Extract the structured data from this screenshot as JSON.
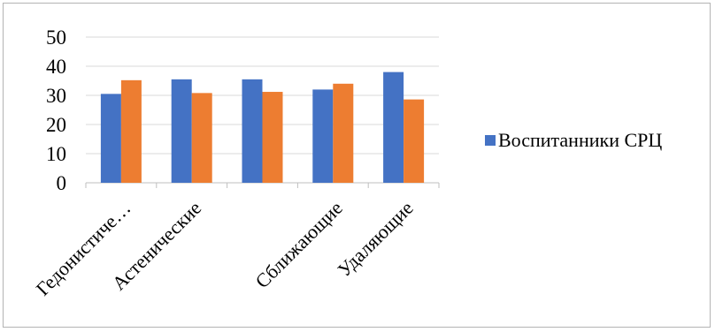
{
  "chart_data": {
    "type": "bar",
    "categories": [
      "Гедонистиче…",
      "Астенические",
      "",
      "Сближающие",
      "Удаляющие"
    ],
    "series": [
      {
        "name": "Воспитанники СРЦ",
        "color": "#4472c4",
        "values": [
          30.5,
          35.5,
          35.5,
          32,
          38
        ]
      },
      {
        "name": "",
        "color": "#ed7d31",
        "values": [
          35.2,
          30.8,
          31.2,
          34,
          28.6
        ]
      }
    ],
    "ylim": [
      0,
      50
    ],
    "yticks": [
      0,
      10,
      20,
      30,
      40,
      50
    ],
    "grid": true,
    "legend_position": "right",
    "title": "",
    "xlabel": "",
    "ylabel": ""
  }
}
